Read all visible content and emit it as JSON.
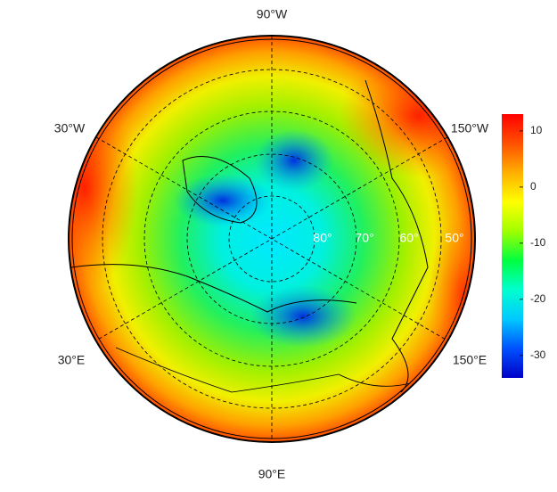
{
  "map": {
    "projection": "north polar stereographic",
    "lon_labels": [
      "90°W",
      "30°W",
      "150°W",
      "30°E",
      "150°E",
      "90°E"
    ],
    "lat_labels": [
      "80°",
      "70°",
      "60°",
      "50°"
    ]
  },
  "colorbar": {
    "lim": [
      -34,
      13
    ],
    "ticks": [
      10,
      0,
      -10,
      -20,
      -30
    ],
    "colors": [
      "#0000c8",
      "#0050ff",
      "#00c8ff",
      "#00ffd0",
      "#00ff40",
      "#a0ff00",
      "#ffff00",
      "#ffb000",
      "#ff5000",
      "#ff0000"
    ]
  }
}
